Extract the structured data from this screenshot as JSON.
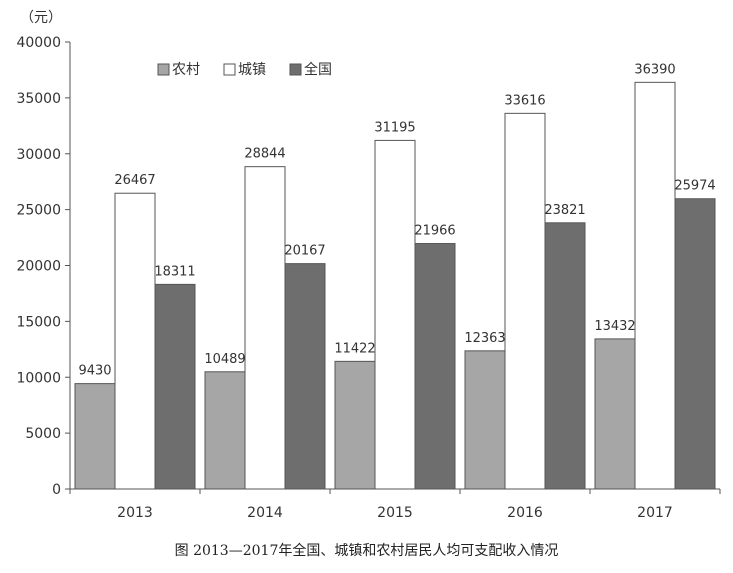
{
  "chart_data": {
    "type": "bar",
    "unit_label": "（元）",
    "categories": [
      "2013",
      "2014",
      "2015",
      "2016",
      "2017"
    ],
    "series": [
      {
        "name": "农村",
        "color": "#a6a6a6",
        "values": [
          9430,
          10489,
          11422,
          12363,
          13432
        ]
      },
      {
        "name": "城镇",
        "color": "#ffffff",
        "values": [
          26467,
          28844,
          31195,
          33616,
          36390
        ]
      },
      {
        "name": "全国",
        "color": "#6e6e6e",
        "values": [
          18311,
          20167,
          21966,
          23821,
          25974
        ]
      }
    ],
    "ylim": [
      0,
      40000
    ],
    "yticks": [
      "0",
      "5000",
      "10000",
      "15000",
      "20000",
      "25000",
      "30000",
      "35000",
      "40000"
    ],
    "legend_position": "top-left",
    "grid": false
  },
  "caption": "图  2013—2017年全国、城镇和农村居民人均可支配收入情况"
}
